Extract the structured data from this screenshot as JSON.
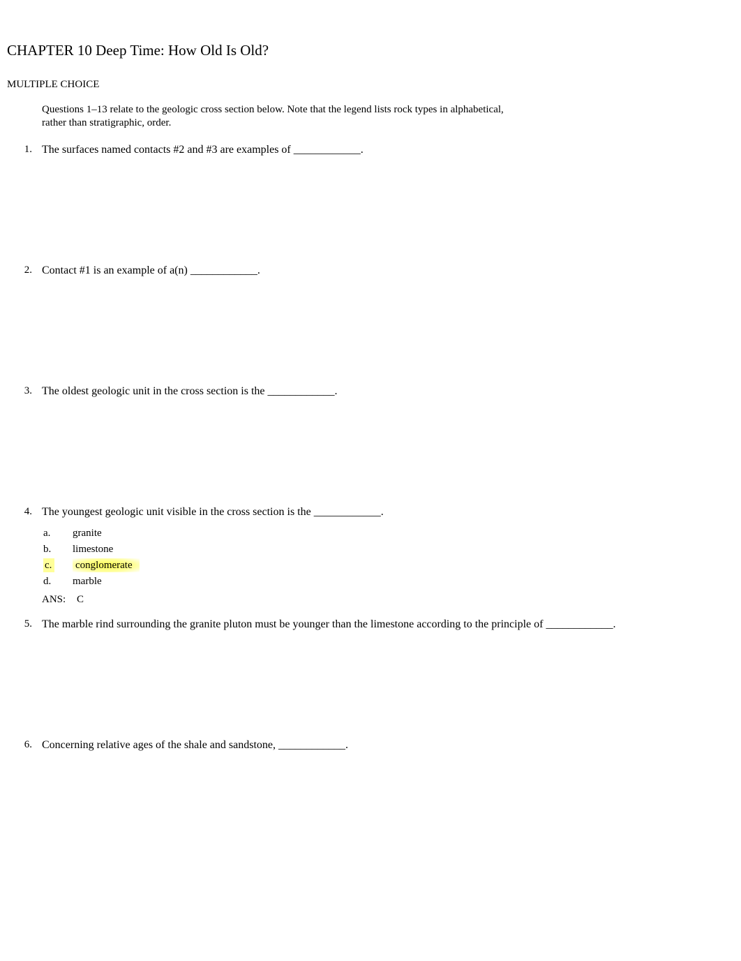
{
  "chapter_title": "CHAPTER 10 Deep Time: How Old Is Old?",
  "section_heading": "MULTIPLE CHOICE",
  "instruction": "Questions 1–13 relate to the geologic cross section below. Note that the legend lists rock types in alphabetical, rather than stratigraphic, order.",
  "questions": [
    {
      "number": "1.",
      "text": "The surfaces named contacts #2 and #3 are examples of ____________."
    },
    {
      "number": "2.",
      "text": "Contact #1 is an example of a(n) ____________."
    },
    {
      "number": "3.",
      "text": "The oldest geologic unit in the cross section is the ____________."
    },
    {
      "number": "4.",
      "text": "The youngest geologic unit visible in the cross section is the ____________.",
      "options": [
        {
          "letter": "a.",
          "text": "granite",
          "highlighted": false
        },
        {
          "letter": "b.",
          "text": "limestone",
          "highlighted": false
        },
        {
          "letter": "c.",
          "text": "conglomerate",
          "highlighted": true
        },
        {
          "letter": "d.",
          "text": "marble",
          "highlighted": false
        }
      ],
      "answer_label": "ANS:",
      "answer_value": "C"
    },
    {
      "number": "5.",
      "text": "The marble rind surrounding the granite pluton must be younger than the limestone according to the principle of ____________."
    },
    {
      "number": "6.",
      "text": "Concerning relative ages of the shale and sandstone, ____________."
    }
  ],
  "colors": {
    "background": "#ffffff",
    "text": "#000000",
    "highlight": "#ffff99",
    "highlight_glow": "#ffff66"
  },
  "typography": {
    "font_family": "Times New Roman",
    "title_size": 21,
    "body_size": 15,
    "question_size": 16
  }
}
